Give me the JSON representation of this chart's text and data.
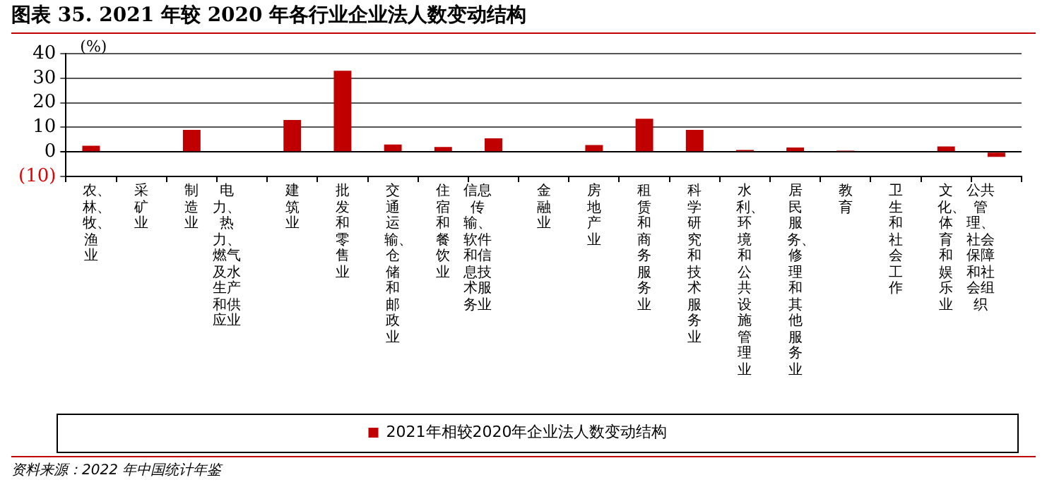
{
  "chart_data": {
    "type": "bar",
    "title": "图表 35. 2021 年较 2020 年各行业企业法人数变动结构",
    "ylabel": "(%)",
    "categories": [
      "农、林、牧、渔业",
      "采矿业",
      "制造业",
      "电力、热力、燃气及水生产和供应业",
      "建筑业",
      "批发和零售业",
      "交通运输、仓储和邮政业",
      "住宿和餐饮业",
      "信息传输、软件和信息技术服务业",
      "金融业",
      "房地产业",
      "租赁和商务服务业",
      "科学研究和技术服务业",
      "水利、环境和公共设施管理业",
      "居民服务、修理和其他服务业",
      "教育",
      "卫生和社会工作",
      "文化、体育和娱乐业",
      "公共管理、社会保障和社会组织"
    ],
    "series": [
      {
        "name": "2021年相较2020年企业法人数变动结构",
        "color": "#c00000",
        "values": [
          2.5,
          null,
          9,
          null,
          13,
          33,
          3,
          2,
          5.5,
          null,
          2.8,
          13.5,
          9,
          0.8,
          1.8,
          0.5,
          0,
          2.2,
          -2
        ]
      }
    ],
    "ylim": [
      -10,
      40
    ],
    "yticks": [
      {
        "value": -10,
        "label": "(10)"
      },
      0,
      10,
      20,
      30,
      40
    ],
    "grid": "y",
    "legend": "bottom",
    "annotations": [
      "资料来源：2022 年中国统计年鉴"
    ]
  }
}
